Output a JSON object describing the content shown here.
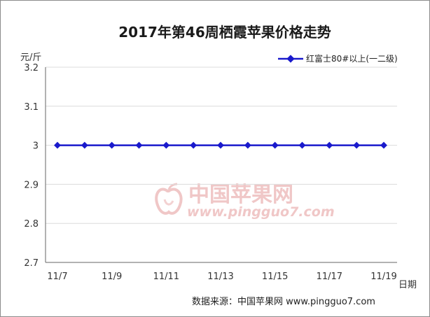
{
  "chart_data": {
    "type": "line",
    "title": "2017年第46周栖霞苹果价格走势",
    "ylabel": "元/斤",
    "xlabel": "日期",
    "ylim": [
      2.7,
      3.2
    ],
    "yticks": [
      "2.7",
      "2.8",
      "2.9",
      "3",
      "3.1",
      "3.2"
    ],
    "ytick_values": [
      2.7,
      2.8,
      2.9,
      3.0,
      3.1,
      3.2
    ],
    "x": [
      "11/7",
      "11/8",
      "11/9",
      "11/10",
      "11/11",
      "11/12",
      "11/13",
      "11/14",
      "11/15",
      "11/16",
      "11/17",
      "11/18",
      "11/19"
    ],
    "xtick_labels": [
      "11/7",
      "",
      "11/9",
      "",
      "11/11",
      "",
      "11/13",
      "",
      "11/15",
      "",
      "11/17",
      "",
      "11/19"
    ],
    "series": [
      {
        "name": "红富士80#以上(一二级)",
        "color": "#1a1acc",
        "values": [
          3,
          3,
          3,
          3,
          3,
          3,
          3,
          3,
          3,
          3,
          3,
          3,
          3
        ]
      }
    ],
    "grid": true,
    "legend_position": "top-right"
  },
  "watermark": {
    "text_cn": "中国苹果网",
    "url": "www.pingguo7.com",
    "icon": "apple-logo-icon"
  },
  "source": "数据来源：中国苹果网 www.pingguo7.com"
}
